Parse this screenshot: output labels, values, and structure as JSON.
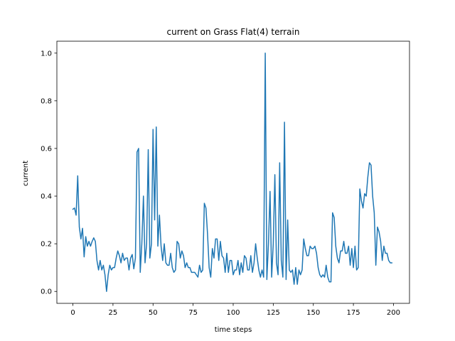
{
  "chart_data": {
    "type": "line",
    "title": "current on Grass Flat(4) terrain",
    "xlabel": "time steps",
    "ylabel": "current",
    "xlim": [
      -10,
      210
    ],
    "ylim": [
      -0.05,
      1.05
    ],
    "xticks": [
      0,
      25,
      50,
      75,
      100,
      125,
      150,
      175,
      200
    ],
    "yticks": [
      0.0,
      0.2,
      0.4,
      0.6,
      0.8,
      1.0
    ],
    "xtick_labels": [
      "0",
      "25",
      "50",
      "75",
      "100",
      "125",
      "150",
      "175",
      "200"
    ],
    "ytick_labels": [
      "0.0",
      "0.2",
      "0.4",
      "0.6",
      "0.8",
      "1.0"
    ],
    "grid": false,
    "series": [
      {
        "color": "#1f77b4",
        "x": [
          0,
          1,
          2,
          3,
          4,
          5,
          6,
          7,
          8,
          9,
          10,
          11,
          12,
          13,
          14,
          15,
          16,
          17,
          18,
          19,
          20,
          21,
          22,
          23,
          24,
          25,
          26,
          27,
          28,
          29,
          30,
          31,
          32,
          33,
          34,
          35,
          36,
          37,
          38,
          39,
          40,
          41,
          42,
          43,
          44,
          45,
          46,
          47,
          48,
          49,
          50,
          51,
          52,
          53,
          54,
          55,
          56,
          57,
          58,
          59,
          60,
          61,
          62,
          63,
          64,
          65,
          66,
          67,
          68,
          69,
          70,
          71,
          72,
          73,
          74,
          75,
          76,
          77,
          78,
          79,
          80,
          81,
          82,
          83,
          84,
          85,
          86,
          87,
          88,
          89,
          90,
          91,
          92,
          93,
          94,
          95,
          96,
          97,
          98,
          99,
          100,
          101,
          102,
          103,
          104,
          105,
          106,
          107,
          108,
          109,
          110,
          111,
          112,
          113,
          114,
          115,
          116,
          117,
          118,
          119,
          120,
          121,
          122,
          123,
          124,
          125,
          126,
          127,
          128,
          129,
          130,
          131,
          132,
          133,
          134,
          135,
          136,
          137,
          138,
          139,
          140,
          141,
          142,
          143,
          144,
          145,
          146,
          147,
          148,
          149,
          150,
          151,
          152,
          153,
          154,
          155,
          156,
          157,
          158,
          159,
          160,
          161,
          162,
          163,
          164,
          165,
          166,
          167,
          168,
          169,
          170,
          171,
          172,
          173,
          174,
          175,
          176,
          177,
          178,
          179,
          180,
          181,
          182,
          183,
          184,
          185,
          186,
          187,
          188,
          189,
          190,
          191,
          192,
          193,
          194,
          195,
          196,
          197,
          198,
          199
        ],
        "y": [
          0.345,
          0.35,
          0.32,
          0.485,
          0.27,
          0.22,
          0.265,
          0.145,
          0.23,
          0.19,
          0.21,
          0.19,
          0.21,
          0.225,
          0.21,
          0.13,
          0.09,
          0.13,
          0.09,
          0.11,
          0.07,
          0.0,
          0.07,
          0.11,
          0.09,
          0.1,
          0.1,
          0.14,
          0.17,
          0.15,
          0.12,
          0.16,
          0.13,
          0.14,
          0.14,
          0.09,
          0.14,
          0.155,
          0.095,
          0.14,
          0.585,
          0.6,
          0.08,
          0.2,
          0.4,
          0.12,
          0.2,
          0.595,
          0.14,
          0.2,
          0.68,
          0.3,
          0.69,
          0.19,
          0.32,
          0.19,
          0.13,
          0.2,
          0.12,
          0.11,
          0.11,
          0.16,
          0.1,
          0.08,
          0.09,
          0.21,
          0.2,
          0.14,
          0.17,
          0.15,
          0.1,
          0.12,
          0.1,
          0.1,
          0.08,
          0.08,
          0.08,
          0.07,
          0.06,
          0.11,
          0.08,
          0.09,
          0.37,
          0.35,
          0.24,
          0.1,
          0.06,
          0.18,
          0.14,
          0.22,
          0.22,
          0.13,
          0.21,
          0.15,
          0.14,
          0.08,
          0.16,
          0.08,
          0.13,
          0.13,
          0.07,
          0.09,
          0.09,
          0.13,
          0.07,
          0.12,
          0.08,
          0.15,
          0.14,
          0.09,
          0.09,
          0.15,
          0.08,
          0.12,
          0.2,
          0.14,
          0.09,
          0.06,
          0.09,
          0.06,
          1.0,
          0.05,
          0.2,
          0.42,
          0.06,
          0.2,
          0.49,
          0.12,
          0.07,
          0.54,
          0.13,
          0.06,
          0.71,
          0.05,
          0.3,
          0.09,
          0.08,
          0.09,
          0.03,
          0.1,
          0.03,
          0.09,
          0.07,
          0.09,
          0.22,
          0.18,
          0.15,
          0.15,
          0.19,
          0.18,
          0.18,
          0.19,
          0.16,
          0.1,
          0.07,
          0.06,
          0.07,
          0.06,
          0.11,
          0.06,
          0.04,
          0.04,
          0.33,
          0.31,
          0.19,
          0.14,
          0.12,
          0.17,
          0.17,
          0.21,
          0.16,
          0.16,
          0.19,
          0.11,
          0.18,
          0.1,
          0.19,
          0.09,
          0.1,
          0.43,
          0.38,
          0.35,
          0.41,
          0.4,
          0.48,
          0.54,
          0.53,
          0.4,
          0.33,
          0.11,
          0.27,
          0.25,
          0.21,
          0.13,
          0.19,
          0.16,
          0.16,
          0.13,
          0.12,
          0.12
        ]
      }
    ]
  }
}
